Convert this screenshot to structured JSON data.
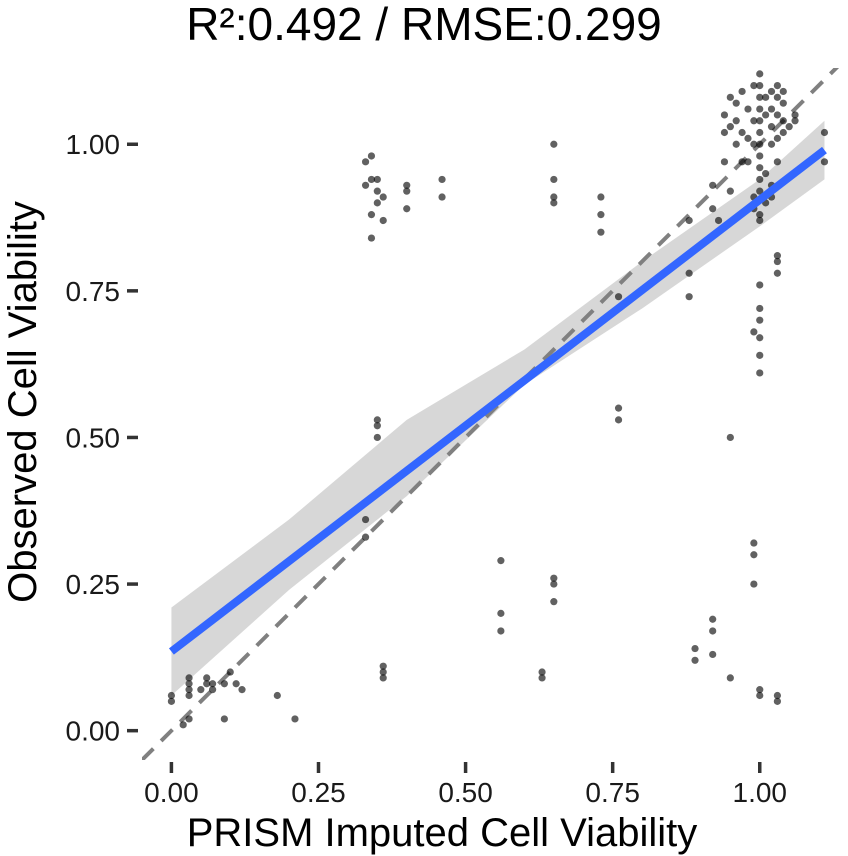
{
  "chart_data": {
    "type": "scatter",
    "title": "R²:0.492 / RMSE:0.299",
    "xlabel": "PRISM Imputed Cell Viability",
    "ylabel": "Observed Cell Viability",
    "xlim": [
      -0.05,
      1.15
    ],
    "ylim": [
      -0.05,
      1.13
    ],
    "xticks": [
      {
        "value": 0.0,
        "label": "0.00"
      },
      {
        "value": 0.25,
        "label": "0.25"
      },
      {
        "value": 0.5,
        "label": "0.50"
      },
      {
        "value": 0.75,
        "label": "0.75"
      },
      {
        "value": 1.0,
        "label": "1.00"
      }
    ],
    "yticks": [
      {
        "value": 0.0,
        "label": "0.00"
      },
      {
        "value": 0.25,
        "label": "0.25"
      },
      {
        "value": 0.5,
        "label": "0.50"
      },
      {
        "value": 0.75,
        "label": "0.75"
      },
      {
        "value": 1.0,
        "label": "1.00"
      }
    ],
    "grid": false,
    "identity_line": {
      "slope": 1,
      "intercept": 0,
      "style": "dashed",
      "color": "#808080"
    },
    "fit_line": {
      "x_start": 0.0,
      "x_end": 1.11,
      "y_start": 0.135,
      "y_end": 0.99,
      "color": "#3366ff"
    },
    "confidence_band": {
      "x": [
        0.0,
        0.2,
        0.4,
        0.6,
        0.8,
        1.0,
        1.11
      ],
      "lower": [
        0.06,
        0.24,
        0.4,
        0.59,
        0.72,
        0.86,
        0.94
      ],
      "upper": [
        0.21,
        0.36,
        0.53,
        0.65,
        0.8,
        0.94,
        1.04
      ],
      "color": "#d3d3d3"
    },
    "point_color": "#000000",
    "points": [
      [
        0.0,
        0.05
      ],
      [
        0.0,
        0.06
      ],
      [
        0.02,
        0.01
      ],
      [
        0.03,
        0.02
      ],
      [
        0.03,
        0.06
      ],
      [
        0.03,
        0.07
      ],
      [
        0.03,
        0.08
      ],
      [
        0.03,
        0.09
      ],
      [
        0.05,
        0.07
      ],
      [
        0.06,
        0.08
      ],
      [
        0.06,
        0.09
      ],
      [
        0.07,
        0.07
      ],
      [
        0.07,
        0.08
      ],
      [
        0.09,
        0.02
      ],
      [
        0.09,
        0.08
      ],
      [
        0.1,
        0.1
      ],
      [
        0.11,
        0.08
      ],
      [
        0.12,
        0.07
      ],
      [
        0.18,
        0.06
      ],
      [
        0.21,
        0.02
      ],
      [
        0.33,
        0.33
      ],
      [
        0.33,
        0.36
      ],
      [
        0.33,
        0.93
      ],
      [
        0.33,
        0.97
      ],
      [
        0.34,
        0.84
      ],
      [
        0.34,
        0.88
      ],
      [
        0.34,
        0.94
      ],
      [
        0.34,
        0.98
      ],
      [
        0.35,
        0.9
      ],
      [
        0.35,
        0.92
      ],
      [
        0.35,
        0.94
      ],
      [
        0.35,
        0.5
      ],
      [
        0.35,
        0.52
      ],
      [
        0.35,
        0.53
      ],
      [
        0.36,
        0.09
      ],
      [
        0.36,
        0.1
      ],
      [
        0.36,
        0.11
      ],
      [
        0.36,
        0.87
      ],
      [
        0.36,
        0.91
      ],
      [
        0.4,
        0.89
      ],
      [
        0.4,
        0.92
      ],
      [
        0.4,
        0.93
      ],
      [
        0.46,
        0.91
      ],
      [
        0.46,
        0.94
      ],
      [
        0.56,
        0.17
      ],
      [
        0.56,
        0.2
      ],
      [
        0.56,
        0.29
      ],
      [
        0.63,
        0.09
      ],
      [
        0.63,
        0.1
      ],
      [
        0.65,
        0.22
      ],
      [
        0.65,
        0.25
      ],
      [
        0.65,
        0.26
      ],
      [
        0.65,
        0.9
      ],
      [
        0.65,
        0.91
      ],
      [
        0.65,
        0.94
      ],
      [
        0.65,
        1.0
      ],
      [
        0.73,
        0.85
      ],
      [
        0.73,
        0.88
      ],
      [
        0.73,
        0.91
      ],
      [
        0.76,
        0.53
      ],
      [
        0.76,
        0.55
      ],
      [
        0.76,
        0.74
      ],
      [
        0.88,
        0.74
      ],
      [
        0.88,
        0.78
      ],
      [
        0.88,
        0.87
      ],
      [
        0.89,
        0.12
      ],
      [
        0.89,
        0.14
      ],
      [
        0.92,
        0.13
      ],
      [
        0.92,
        0.17
      ],
      [
        0.92,
        0.19
      ],
      [
        0.92,
        0.89
      ],
      [
        0.92,
        0.93
      ],
      [
        0.93,
        0.87
      ],
      [
        0.95,
        0.09
      ],
      [
        0.95,
        0.92
      ],
      [
        0.95,
        0.5
      ],
      [
        0.96,
        1.0
      ],
      [
        0.97,
        0.97
      ],
      [
        0.97,
        1.02
      ],
      [
        0.98,
        0.97
      ],
      [
        0.99,
        0.25
      ],
      [
        0.99,
        0.3
      ],
      [
        0.99,
        0.32
      ],
      [
        0.99,
        0.68
      ],
      [
        0.99,
        0.89
      ],
      [
        0.99,
        0.91
      ],
      [
        0.99,
        1.0
      ],
      [
        0.99,
        1.04
      ],
      [
        1.0,
        0.06
      ],
      [
        1.0,
        0.07
      ],
      [
        1.0,
        0.61
      ],
      [
        1.0,
        0.64
      ],
      [
        1.0,
        0.67
      ],
      [
        1.0,
        0.7
      ],
      [
        1.0,
        0.72
      ],
      [
        1.0,
        0.76
      ],
      [
        1.0,
        0.87
      ],
      [
        1.0,
        0.88
      ],
      [
        1.0,
        0.92
      ],
      [
        1.0,
        0.94
      ],
      [
        1.0,
        0.96
      ],
      [
        1.0,
        0.98
      ],
      [
        1.0,
        1.0
      ],
      [
        1.0,
        1.02
      ],
      [
        1.0,
        1.04
      ],
      [
        1.0,
        1.06
      ],
      [
        1.0,
        1.08
      ],
      [
        1.0,
        1.1
      ],
      [
        1.0,
        1.12
      ],
      [
        1.01,
        0.9
      ],
      [
        1.01,
        0.95
      ],
      [
        1.01,
        1.05
      ],
      [
        1.02,
        0.91
      ],
      [
        1.02,
        0.93
      ],
      [
        1.02,
        1.0
      ],
      [
        1.02,
        1.03
      ],
      [
        1.03,
        0.05
      ],
      [
        1.03,
        0.06
      ],
      [
        1.03,
        0.78
      ],
      [
        1.03,
        0.8
      ],
      [
        1.03,
        0.81
      ],
      [
        1.03,
        0.97
      ],
      [
        1.03,
        1.01
      ],
      [
        1.03,
        1.05
      ],
      [
        1.03,
        1.08
      ],
      [
        1.04,
        1.04
      ],
      [
        1.04,
        1.07
      ],
      [
        1.05,
        1.03
      ],
      [
        1.06,
        1.04
      ],
      [
        1.06,
        1.05
      ],
      [
        1.11,
        0.97
      ],
      [
        1.11,
        1.02
      ],
      [
        0.94,
        1.02
      ],
      [
        0.94,
        1.05
      ],
      [
        0.95,
        1.03
      ],
      [
        0.94,
        0.97
      ],
      [
        0.98,
        1.06
      ],
      [
        0.96,
        1.07
      ],
      [
        0.95,
        1.08
      ],
      [
        0.97,
        1.09
      ],
      [
        0.99,
        1.1
      ],
      [
        1.01,
        1.08
      ],
      [
        1.02,
        1.09
      ],
      [
        1.03,
        1.1
      ],
      [
        1.04,
        1.09
      ],
      [
        0.96,
        1.04
      ],
      [
        0.98,
        1.01
      ],
      [
        1.02,
        1.06
      ],
      [
        1.04,
        1.02
      ]
    ]
  }
}
